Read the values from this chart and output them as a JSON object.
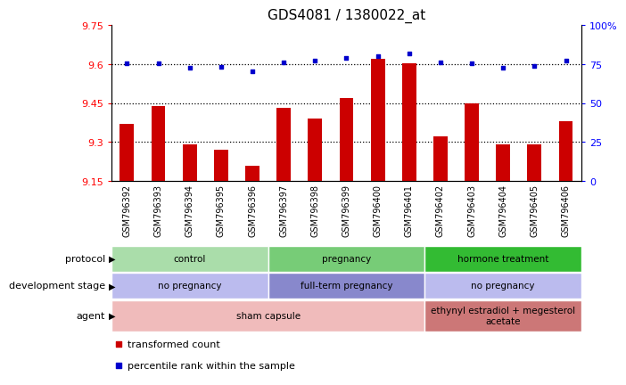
{
  "title": "GDS4081 / 1380022_at",
  "samples": [
    "GSM796392",
    "GSM796393",
    "GSM796394",
    "GSM796395",
    "GSM796396",
    "GSM796397",
    "GSM796398",
    "GSM796399",
    "GSM796400",
    "GSM796401",
    "GSM796402",
    "GSM796403",
    "GSM796404",
    "GSM796405",
    "GSM796406"
  ],
  "transformed_count": [
    9.37,
    9.44,
    9.29,
    9.27,
    9.21,
    9.43,
    9.39,
    9.47,
    9.62,
    9.605,
    9.32,
    9.45,
    9.29,
    9.29,
    9.38
  ],
  "percentile_rank": [
    75.5,
    75.5,
    72.5,
    73.0,
    70.5,
    76.0,
    77.0,
    79.0,
    80.0,
    82.0,
    76.0,
    75.5,
    72.5,
    74.0,
    77.0
  ],
  "ylim_left": [
    9.15,
    9.75
  ],
  "ylim_right": [
    0,
    100
  ],
  "yticks_left": [
    9.15,
    9.3,
    9.45,
    9.6,
    9.75
  ],
  "yticks_right": [
    0,
    25,
    50,
    75,
    100
  ],
  "ytick_labels_left": [
    "9.15",
    "9.3",
    "9.45",
    "9.6",
    "9.75"
  ],
  "ytick_labels_right": [
    "0",
    "25",
    "50",
    "75",
    "100%"
  ],
  "hlines": [
    9.3,
    9.45,
    9.6
  ],
  "bar_color": "#cc0000",
  "dot_color": "#0000cc",
  "bar_width": 0.45,
  "protocol_groups": [
    {
      "label": "control",
      "start": 0,
      "end": 4,
      "color": "#aaddaa"
    },
    {
      "label": "pregnancy",
      "start": 5,
      "end": 9,
      "color": "#77cc77"
    },
    {
      "label": "hormone treatment",
      "start": 10,
      "end": 14,
      "color": "#33bb33"
    }
  ],
  "dev_stage_groups": [
    {
      "label": "no pregnancy",
      "start": 0,
      "end": 4,
      "color": "#bbbbee"
    },
    {
      "label": "full-term pregnancy",
      "start": 5,
      "end": 9,
      "color": "#8888cc"
    },
    {
      "label": "no pregnancy",
      "start": 10,
      "end": 14,
      "color": "#bbbbee"
    }
  ],
  "agent_groups": [
    {
      "label": "sham capsule",
      "start": 0,
      "end": 9,
      "color": "#f0bbbb"
    },
    {
      "label": "ethynyl estradiol + megesterol\nacetate",
      "start": 10,
      "end": 14,
      "color": "#cc7777"
    }
  ],
  "row_labels": [
    "protocol",
    "development stage",
    "agent"
  ],
  "legend_items": [
    {
      "color": "#cc0000",
      "label": "transformed count"
    },
    {
      "color": "#0000cc",
      "label": "percentile rank within the sample"
    }
  ],
  "background_color": "#ffffff",
  "plot_bg_color": "#ffffff",
  "xtick_bg_color": "#cccccc"
}
